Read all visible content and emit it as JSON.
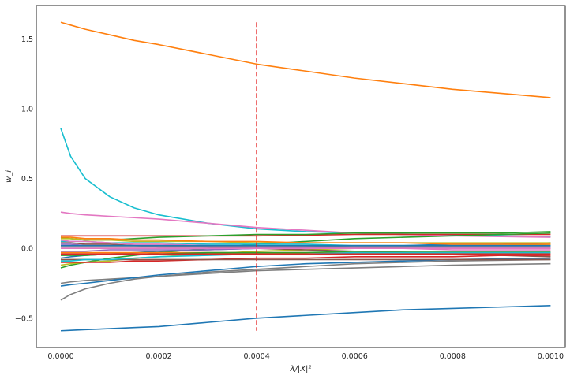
{
  "chart_data": {
    "type": "line",
    "title": "",
    "xlabel": "λ/|X|²",
    "ylabel": "w_i",
    "xlim": [
      -5e-05,
      0.00103
    ],
    "ylim": [
      -0.71,
      1.74
    ],
    "grid": false,
    "x_ticks": [
      0,
      0.0002,
      0.0004,
      0.0006,
      0.0008,
      0.001
    ],
    "x_tick_labels": [
      "0.0000",
      "0.0002",
      "0.0004",
      "0.0006",
      "0.0008",
      "0.0010"
    ],
    "y_ticks": [
      -0.5,
      0,
      0.5,
      1.0,
      1.5
    ],
    "y_tick_labels": [
      "−0.5",
      "0.0",
      "0.5",
      "1.0",
      "1.5"
    ],
    "x": [
      0,
      2e-05,
      5e-05,
      0.0001,
      0.00015,
      0.0002,
      0.0003,
      0.0004,
      0.0005,
      0.0006,
      0.0007,
      0.0008,
      0.0009,
      0.001
    ],
    "series": [
      {
        "color": "#ff7f0e",
        "values": [
          1.62,
          1.6,
          1.57,
          1.53,
          1.49,
          1.46,
          1.39,
          1.32,
          1.27,
          1.22,
          1.18,
          1.14,
          1.11,
          1.08
        ]
      },
      {
        "color": "#17becf",
        "values": [
          0.86,
          0.66,
          0.5,
          0.37,
          0.29,
          0.24,
          0.18,
          0.14,
          0.12,
          0.11,
          0.1,
          0.095,
          0.09,
          0.085
        ]
      },
      {
        "color": "#e377c2",
        "values": [
          0.26,
          0.25,
          0.24,
          0.23,
          0.22,
          0.21,
          0.18,
          0.15,
          0.13,
          0.11,
          0.1,
          0.09,
          0.085,
          0.08
        ]
      },
      {
        "color": "#1f77b4",
        "values": [
          -0.59,
          -0.587,
          -0.582,
          -0.575,
          -0.567,
          -0.56,
          -0.53,
          -0.5,
          -0.48,
          -0.46,
          -0.44,
          -0.43,
          -0.42,
          -0.41
        ]
      },
      {
        "color": "#7f7f7f",
        "values": [
          -0.37,
          -0.33,
          -0.29,
          -0.25,
          -0.22,
          -0.2,
          -0.18,
          -0.16,
          -0.15,
          -0.14,
          -0.13,
          -0.12,
          -0.115,
          -0.11
        ]
      },
      {
        "color": "#7f7f7f",
        "values": [
          -0.25,
          -0.24,
          -0.23,
          -0.22,
          -0.21,
          -0.2,
          -0.17,
          -0.15,
          -0.13,
          -0.11,
          -0.1,
          -0.09,
          -0.085,
          -0.08
        ]
      },
      {
        "color": "#1f77b4",
        "values": [
          -0.27,
          -0.26,
          -0.25,
          -0.23,
          -0.21,
          -0.19,
          -0.16,
          -0.13,
          -0.11,
          -0.1,
          -0.09,
          -0.08,
          -0.075,
          -0.07
        ]
      },
      {
        "color": "#d62728",
        "values": [
          0.09,
          0.09,
          0.09,
          0.09,
          0.09,
          0.09,
          0.09,
          0.09,
          0.095,
          0.1,
          0.1,
          0.1,
          0.1,
          0.1
        ]
      },
      {
        "color": "#2ca02c",
        "values": [
          -0.14,
          -0.12,
          -0.1,
          -0.07,
          -0.05,
          -0.03,
          0.0,
          0.03,
          0.05,
          0.07,
          0.08,
          0.09,
          0.1,
          0.11
        ]
      },
      {
        "color": "#2ca02c",
        "values": [
          0.08,
          0.07,
          0.06,
          0.06,
          0.07,
          0.08,
          0.09,
          0.1,
          0.1,
          0.11,
          0.11,
          0.11,
          0.11,
          0.12
        ]
      },
      {
        "color": "#bcbd22",
        "values": [
          -0.12,
          -0.11,
          -0.1,
          -0.09,
          -0.07,
          -0.06,
          -0.04,
          -0.02,
          -0.01,
          0.0,
          0.01,
          0.02,
          0.02,
          0.03
        ]
      },
      {
        "color": "#8c564b",
        "values": [
          0.04,
          0.04,
          0.03,
          0.03,
          0.02,
          0.02,
          0.01,
          0.0,
          -0.01,
          -0.02,
          -0.03,
          -0.04,
          -0.05,
          -0.06
        ]
      },
      {
        "color": "#9467bd",
        "values": [
          0.03,
          0.03,
          0.02,
          0.02,
          0.02,
          0.01,
          0.01,
          0.01,
          0.01,
          0.01,
          0.01,
          0.01,
          0.01,
          0.01
        ]
      },
      {
        "color": "#1f77b4",
        "values": [
          -0.07,
          -0.06,
          -0.05,
          -0.04,
          -0.03,
          -0.02,
          -0.01,
          0.0,
          0.01,
          0.02,
          0.02,
          0.03,
          0.03,
          0.04
        ]
      },
      {
        "color": "#ff7f0e",
        "values": [
          -0.03,
          -0.03,
          -0.03,
          -0.03,
          -0.03,
          -0.03,
          -0.03,
          -0.03,
          -0.03,
          -0.03,
          -0.03,
          -0.03,
          -0.03,
          -0.03
        ]
      },
      {
        "color": "#17becf",
        "values": [
          0.05,
          0.05,
          0.05,
          0.04,
          0.04,
          0.04,
          0.03,
          0.03,
          0.03,
          0.02,
          0.02,
          0.02,
          0.02,
          0.02
        ]
      },
      {
        "color": "#e377c2",
        "values": [
          0.06,
          0.05,
          0.05,
          0.04,
          0.03,
          0.03,
          0.02,
          0.01,
          0.01,
          0.0,
          0.0,
          -0.01,
          -0.01,
          -0.01
        ]
      },
      {
        "color": "#d62728",
        "values": [
          -0.1,
          -0.1,
          -0.1,
          -0.1,
          -0.09,
          -0.09,
          -0.08,
          -0.07,
          -0.07,
          -0.06,
          -0.06,
          -0.06,
          -0.05,
          -0.05
        ]
      },
      {
        "color": "#7f7f7f",
        "values": [
          0.01,
          0.01,
          0.01,
          0.01,
          0.01,
          0.01,
          0.01,
          0.01,
          0.01,
          0.01,
          0.01,
          0.01,
          0.01,
          0.01
        ]
      },
      {
        "color": "#bcbd22",
        "values": [
          0.07,
          0.07,
          0.06,
          0.06,
          0.05,
          0.05,
          0.05,
          0.04,
          0.04,
          0.04,
          0.04,
          0.04,
          0.04,
          0.04
        ]
      },
      {
        "color": "#2ca02c",
        "values": [
          -0.05,
          -0.05,
          -0.05,
          -0.04,
          -0.04,
          -0.04,
          -0.03,
          -0.03,
          -0.03,
          -0.02,
          -0.02,
          -0.02,
          -0.02,
          -0.02
        ]
      },
      {
        "color": "#9467bd",
        "values": [
          -0.02,
          -0.02,
          -0.02,
          -0.01,
          -0.01,
          -0.01,
          -0.01,
          0.0,
          0.0,
          0.0,
          0.0,
          0.0,
          0.0,
          0.0
        ]
      },
      {
        "color": "#8c564b",
        "values": [
          -0.08,
          -0.08,
          -0.08,
          -0.08,
          -0.08,
          -0.08,
          -0.08,
          -0.08,
          -0.08,
          -0.08,
          -0.08,
          -0.08,
          -0.08,
          -0.08
        ]
      },
      {
        "color": "#1f77b4",
        "values": [
          0.02,
          0.02,
          0.02,
          0.02,
          0.02,
          0.02,
          0.02,
          0.02,
          0.02,
          0.02,
          0.02,
          0.02,
          0.02,
          0.02
        ]
      },
      {
        "color": "#ff7f0e",
        "values": [
          0.08,
          0.08,
          0.07,
          0.07,
          0.06,
          0.06,
          0.05,
          0.05,
          0.04,
          0.04,
          0.04,
          0.03,
          0.03,
          0.03
        ]
      },
      {
        "color": "#17becf",
        "values": [
          -0.09,
          -0.09,
          -0.08,
          -0.08,
          -0.07,
          -0.06,
          -0.05,
          -0.04,
          -0.04,
          -0.03,
          -0.03,
          -0.03,
          -0.03,
          -0.03
        ]
      },
      {
        "color": "#e377c2",
        "values": [
          0.0,
          0.0,
          0.0,
          0.0,
          0.0,
          0.0,
          0.0,
          0.0,
          0.0,
          0.0,
          0.0,
          0.0,
          0.0,
          0.0
        ]
      },
      {
        "color": "#d62728",
        "values": [
          -0.04,
          -0.04,
          -0.04,
          -0.04,
          -0.04,
          -0.04,
          -0.04,
          -0.04,
          -0.04,
          -0.04,
          -0.04,
          -0.04,
          -0.04,
          -0.04
        ]
      }
    ],
    "vline": {
      "x": 0.0004,
      "y_range": [
        -0.59,
        1.62
      ],
      "color": "#e41a1c",
      "style": "dashed"
    }
  }
}
